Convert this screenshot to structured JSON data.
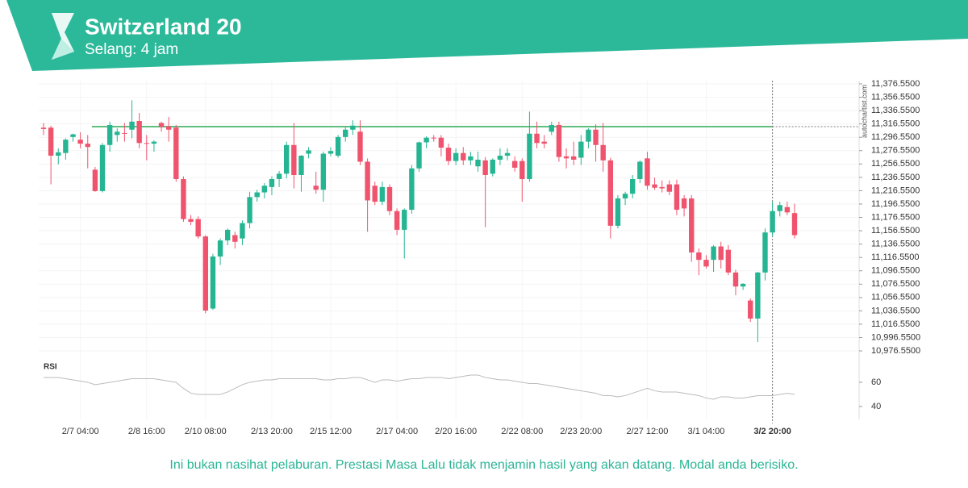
{
  "chart_data": {
    "type": "candlestick",
    "title": "Switzerland 20",
    "subtitle": "Selang: 4 jam",
    "watermark": "autochartist.com",
    "up_color": "#26b592",
    "down_color": "#f0536d",
    "level": 11312.5,
    "level_color": "#5fbf7f",
    "grid": true,
    "ylim": [
      10964.5,
      11381.4
    ],
    "yticks": [
      {
        "value": 11376.55,
        "label": "11,376.5500"
      },
      {
        "value": 11356.55,
        "label": "11,356.5500"
      },
      {
        "value": 11336.55,
        "label": "11,336.5500"
      },
      {
        "value": 11316.55,
        "label": "11,316.5500"
      },
      {
        "value": 11296.55,
        "label": "11,296.5500"
      },
      {
        "value": 11276.55,
        "label": "11,276.5500"
      },
      {
        "value": 11256.55,
        "label": "11,256.5500"
      },
      {
        "value": 11236.55,
        "label": "11,236.5500"
      },
      {
        "value": 11216.55,
        "label": "11,216.5500"
      },
      {
        "value": 11196.55,
        "label": "11,196.5500"
      },
      {
        "value": 11176.55,
        "label": "11,176.5500"
      },
      {
        "value": 11156.55,
        "label": "11,156.5500"
      },
      {
        "value": 11136.55,
        "label": "11,136.5500"
      },
      {
        "value": 11116.55,
        "label": "11,116.5500"
      },
      {
        "value": 11096.55,
        "label": "11,096.5500"
      },
      {
        "value": 11076.55,
        "label": "11,076.5500"
      },
      {
        "value": 11056.55,
        "label": "11,056.5500"
      },
      {
        "value": 11036.55,
        "label": "11,036.5500"
      },
      {
        "value": 11016.55,
        "label": "11,016.5500"
      },
      {
        "value": 10996.55,
        "label": "10,996.5500"
      },
      {
        "value": 10976.55,
        "label": "10,976.5500"
      }
    ],
    "categories": [
      null,
      null,
      null,
      null,
      null,
      "2/7 04:00",
      null,
      null,
      null,
      null,
      null,
      null,
      null,
      null,
      "2/8 16:00",
      null,
      null,
      null,
      null,
      null,
      null,
      null,
      "2/10 08:00",
      null,
      null,
      null,
      null,
      null,
      null,
      null,
      null,
      "2/13 20:00",
      null,
      null,
      null,
      null,
      null,
      null,
      null,
      "2/15 12:00",
      null,
      null,
      null,
      null,
      null,
      null,
      null,
      null,
      "2/17 04:00",
      null,
      null,
      null,
      null,
      null,
      null,
      null,
      "2/20 16:00",
      null,
      null,
      null,
      null,
      null,
      null,
      null,
      null,
      "2/22 08:00",
      null,
      null,
      null,
      null,
      null,
      null,
      null,
      "2/23 20:00",
      null,
      null,
      null,
      null,
      null,
      null,
      null,
      null,
      "2/27 12:00",
      null,
      null,
      null,
      null,
      null,
      null,
      null,
      "3/1 04:00",
      null,
      null,
      null,
      null,
      null,
      null,
      null,
      null,
      "3/2 20:00",
      null,
      null,
      null
    ],
    "open": [
      11311,
      11311,
      11269,
      11273,
      11297,
      11293,
      11287,
      11248,
      11216,
      11285,
      11300,
      11303,
      11308,
      11321,
      11288,
      11287,
      11318,
      11313,
      11311,
      11234,
      11174,
      11174,
      11148,
      11040,
      11118,
      11142,
      11150,
      11145,
      11168,
      11207,
      11214,
      11222,
      11234,
      11242,
      11285,
      11240,
      11272,
      11224,
      11218,
      11272,
      11269,
      11297,
      11308,
      11305,
      11260,
      11224,
      11200,
      11222,
      11186,
      11158,
      11188,
      11250,
      11289,
      11296,
      11296,
      11281,
      11261,
      11273,
      11262,
      11253,
      11262,
      11242,
      11263,
      11269,
      11261,
      11261,
      11234,
      11302,
      11290,
      11305,
      11315,
      11268,
      11268,
      11266,
      11290,
      11308,
      11285,
      11262,
      11164,
      11205,
      11212,
      11234,
      11265,
      11226,
      11222,
      11226,
      11226,
      11205,
      11205,
      11124,
      11113,
      11113,
      11133,
      11128,
      11094,
      11073,
      11052,
      11025,
      11094,
      11154,
      11186,
      11192,
      11183
    ],
    "high": [
      11318,
      11314,
      11280,
      11295,
      11302,
      11304,
      11300,
      11252,
      11288,
      11320,
      11310,
      11318,
      11352,
      11333,
      11300,
      11292,
      11320,
      11327,
      11315,
      11238,
      11180,
      11178,
      11150,
      11122,
      11145,
      11160,
      11155,
      11172,
      11215,
      11218,
      11228,
      11238,
      11246,
      11290,
      11318,
      11270,
      11282,
      11245,
      11275,
      11282,
      11300,
      11312,
      11322,
      11322,
      11265,
      11230,
      11230,
      11226,
      11190,
      11190,
      11255,
      11290,
      11298,
      11300,
      11300,
      11287,
      11280,
      11282,
      11275,
      11275,
      11267,
      11265,
      11280,
      11280,
      11268,
      11265,
      11335,
      11320,
      11300,
      11320,
      11320,
      11280,
      11290,
      11300,
      11310,
      11316,
      11318,
      11266,
      11210,
      11215,
      11240,
      11262,
      11275,
      11236,
      11232,
      11232,
      11233,
      11210,
      11210,
      11130,
      11120,
      11135,
      11140,
      11135,
      11098,
      11078,
      11055,
      11095,
      11160,
      11200,
      11200,
      11200,
      11197
    ],
    "low": [
      11300,
      11226,
      11256,
      11263,
      11290,
      11280,
      11250,
      11215,
      11214,
      11275,
      11290,
      11290,
      11295,
      11280,
      11262,
      11275,
      11305,
      11290,
      11230,
      11170,
      11165,
      11145,
      11033,
      11038,
      11105,
      11135,
      11130,
      11135,
      11160,
      11200,
      11205,
      11210,
      11222,
      11235,
      11220,
      11215,
      11265,
      11212,
      11200,
      11268,
      11266,
      11290,
      11300,
      11255,
      11155,
      11195,
      11195,
      11180,
      11150,
      11115,
      11182,
      11245,
      11280,
      11290,
      11268,
      11255,
      11255,
      11255,
      11255,
      11245,
      11162,
      11238,
      11255,
      11262,
      11245,
      11200,
      11230,
      11280,
      11280,
      11300,
      11260,
      11250,
      11255,
      11255,
      11280,
      11260,
      11245,
      11145,
      11160,
      11195,
      11205,
      11228,
      11218,
      11218,
      11214,
      11210,
      11180,
      11178,
      11110,
      11090,
      11100,
      11095,
      11100,
      11090,
      11060,
      11068,
      11020,
      10990,
      11082,
      11148,
      11178,
      11180,
      11145
    ],
    "close": [
      11309,
      11269,
      11274,
      11293,
      11301,
      11287,
      11282,
      11216,
      11285,
      11315,
      11305,
      11302,
      11320,
      11288,
      11287,
      11290,
      11312,
      11308,
      11234,
      11174,
      11170,
      11148,
      11037,
      11118,
      11142,
      11158,
      11140,
      11168,
      11207,
      11214,
      11224,
      11234,
      11242,
      11285,
      11240,
      11269,
      11277,
      11218,
      11272,
      11276,
      11297,
      11308,
      11314,
      11260,
      11202,
      11200,
      11222,
      11186,
      11158,
      11188,
      11250,
      11289,
      11296,
      11295,
      11281,
      11261,
      11273,
      11262,
      11268,
      11263,
      11240,
      11263,
      11269,
      11273,
      11251,
      11234,
      11302,
      11288,
      11287,
      11315,
      11267,
      11265,
      11263,
      11290,
      11308,
      11285,
      11262,
      11164,
      11205,
      11212,
      11234,
      11260,
      11224,
      11221,
      11220,
      11215,
      11188,
      11190,
      11124,
      11113,
      11103,
      11133,
      11113,
      11094,
      11073,
      11077,
      11025,
      11094,
      11154,
      11186,
      11195,
      11184,
      11150
    ],
    "rsi": {
      "label": "RSI",
      "color": "#bbbbbb",
      "ylim": [
        29.3,
        77.3
      ],
      "yticks": [
        60,
        40
      ],
      "values": [
        64,
        64,
        64,
        63,
        62,
        61,
        60,
        58,
        59,
        60,
        61,
        62,
        63,
        63,
        63,
        63,
        62,
        61,
        60,
        55,
        51,
        50,
        50,
        50,
        50,
        52,
        55,
        58,
        60,
        61,
        62,
        62,
        63,
        63,
        63,
        63,
        63,
        63,
        62,
        62,
        63,
        63,
        64,
        64,
        62,
        60,
        62,
        62,
        61,
        62,
        63,
        63,
        64,
        64,
        64,
        63,
        64,
        65,
        66,
        66,
        64,
        63,
        62,
        62,
        61,
        60,
        59,
        59,
        58,
        57,
        56,
        55,
        54,
        53,
        52,
        51,
        49,
        49,
        48,
        49,
        51,
        53,
        55,
        53,
        52,
        52,
        52,
        51,
        50,
        49,
        47,
        46,
        48,
        48,
        47,
        47,
        48,
        49,
        49,
        49,
        50,
        51,
        50
      ]
    }
  },
  "footer": {
    "disclaimer": "Ini bukan nasihat pelaburan. Prestasi Masa Lalu tidak menjamin hasil yang akan datang. Modal anda berisiko."
  }
}
